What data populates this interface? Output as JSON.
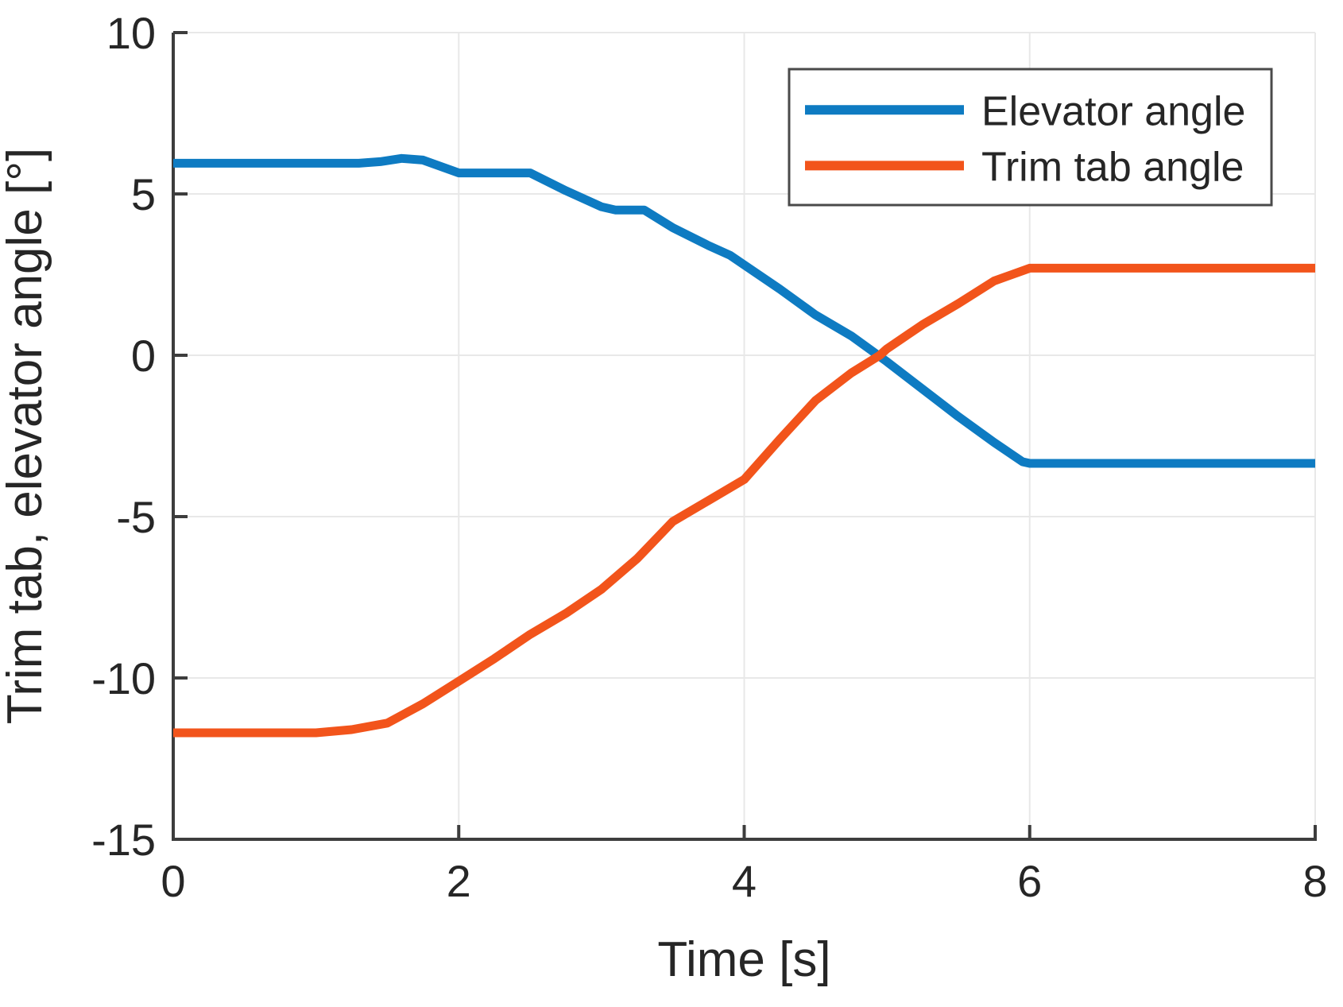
{
  "chart_data": {
    "type": "line",
    "title": "",
    "xlabel": "Time [s]",
    "ylabel": "Trim tab, elevator angle [°]",
    "xlim": [
      0,
      8
    ],
    "ylim": [
      -15,
      10
    ],
    "xticks": [
      0,
      2,
      4,
      6,
      8
    ],
    "yticks": [
      -15,
      -10,
      -5,
      0,
      5,
      10
    ],
    "grid": true,
    "legend_position": "top-right",
    "legend_entries": [
      "Elevator angle",
      "Trim tab angle"
    ],
    "series": [
      {
        "name": "Elevator angle",
        "color": "#0e7bc2",
        "points": [
          [
            0,
            5.95
          ],
          [
            0.5,
            5.95
          ],
          [
            1.0,
            5.95
          ],
          [
            1.3,
            5.95
          ],
          [
            1.45,
            6.0
          ],
          [
            1.6,
            6.1
          ],
          [
            1.75,
            6.05
          ],
          [
            2.0,
            5.65
          ],
          [
            2.5,
            5.65
          ],
          [
            2.75,
            5.1
          ],
          [
            3.0,
            4.6
          ],
          [
            3.1,
            4.5
          ],
          [
            3.3,
            4.5
          ],
          [
            3.5,
            3.95
          ],
          [
            3.75,
            3.4
          ],
          [
            3.9,
            3.1
          ],
          [
            4.0,
            2.8
          ],
          [
            4.25,
            2.05
          ],
          [
            4.5,
            1.25
          ],
          [
            4.75,
            0.6
          ],
          [
            5.0,
            -0.2
          ],
          [
            5.25,
            -1.05
          ],
          [
            5.5,
            -1.9
          ],
          [
            5.75,
            -2.7
          ],
          [
            5.95,
            -3.3
          ],
          [
            6.0,
            -3.35
          ],
          [
            6.5,
            -3.35
          ],
          [
            7.0,
            -3.35
          ],
          [
            7.5,
            -3.35
          ],
          [
            8.0,
            -3.35
          ]
        ]
      },
      {
        "name": "Trim tab angle",
        "color": "#f2541b",
        "points": [
          [
            0,
            -11.7
          ],
          [
            0.5,
            -11.7
          ],
          [
            1.0,
            -11.7
          ],
          [
            1.25,
            -11.6
          ],
          [
            1.5,
            -11.4
          ],
          [
            1.75,
            -10.8
          ],
          [
            2.0,
            -10.1
          ],
          [
            2.25,
            -9.4
          ],
          [
            2.5,
            -8.65
          ],
          [
            2.75,
            -8.0
          ],
          [
            3.0,
            -7.25
          ],
          [
            3.25,
            -6.3
          ],
          [
            3.5,
            -5.15
          ],
          [
            3.75,
            -4.5
          ],
          [
            4.0,
            -3.85
          ],
          [
            4.25,
            -2.6
          ],
          [
            4.5,
            -1.4
          ],
          [
            4.75,
            -0.55
          ],
          [
            4.95,
            0.0
          ],
          [
            5.0,
            0.2
          ],
          [
            5.25,
            0.95
          ],
          [
            5.5,
            1.6
          ],
          [
            5.75,
            2.3
          ],
          [
            6.0,
            2.7
          ],
          [
            6.5,
            2.7
          ],
          [
            7.0,
            2.7
          ],
          [
            7.5,
            2.7
          ],
          [
            8.0,
            2.7
          ]
        ]
      }
    ],
    "style_colors": {
      "axis": "#3d3d3d",
      "grid": "#e8e8e8",
      "text": "#262626",
      "legend_border": "#4a4a4a",
      "background": "#ffffff"
    }
  }
}
